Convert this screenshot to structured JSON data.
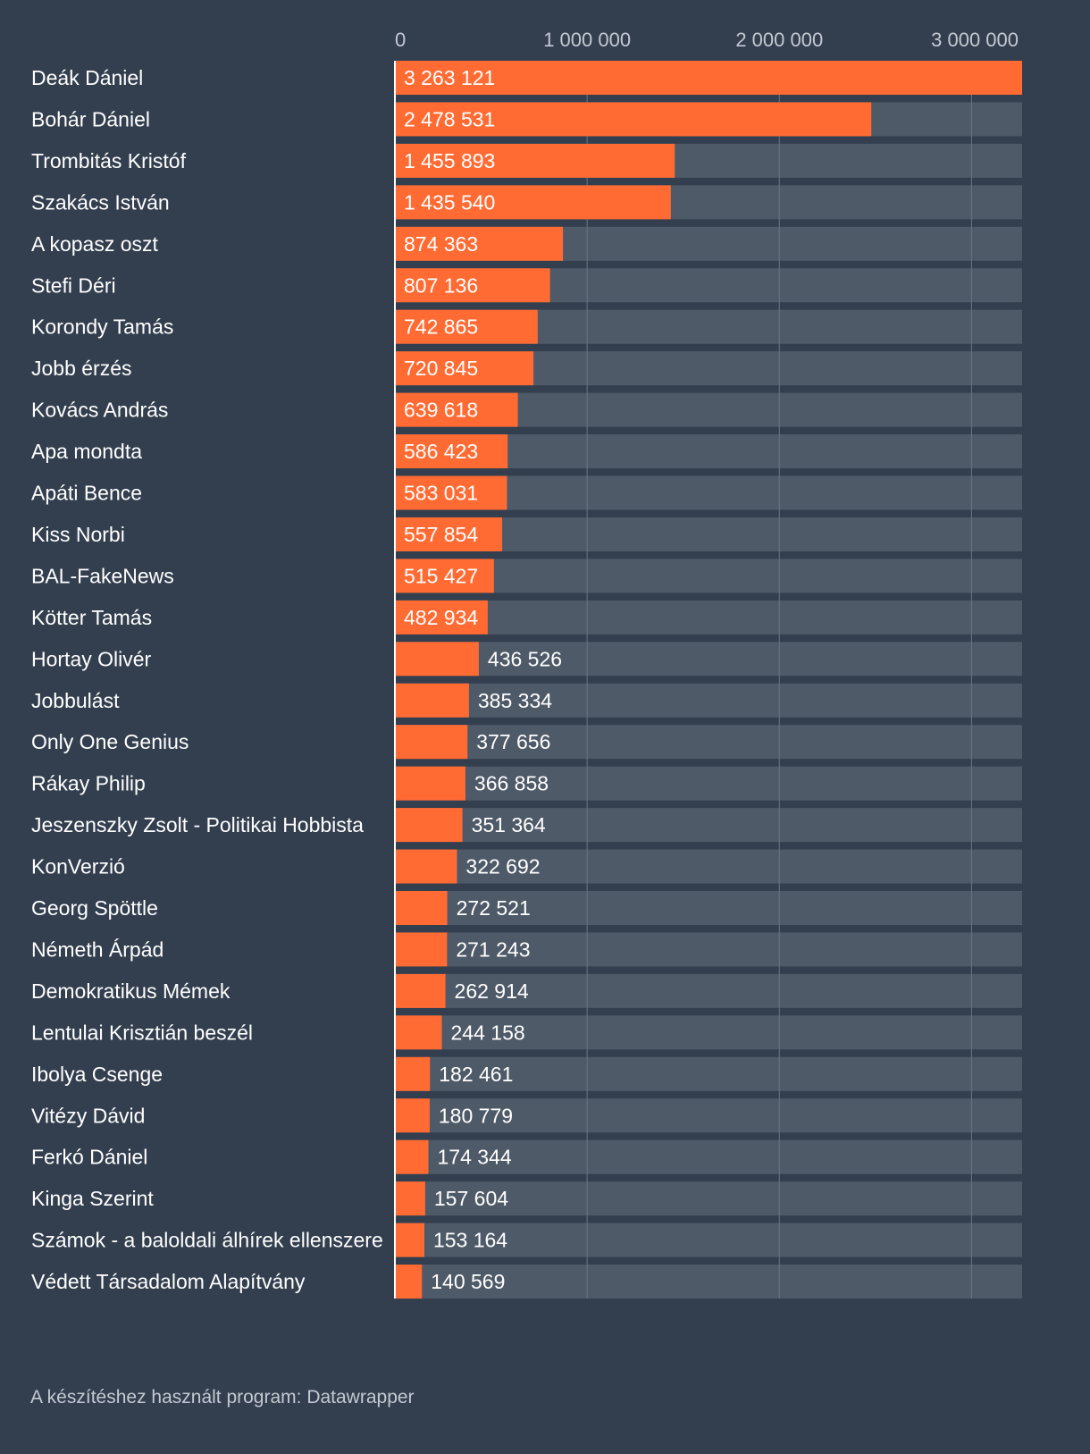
{
  "colors": {
    "background": "#333f4f",
    "bar": "#ff6b33",
    "track": "#4f5a68",
    "grid": "#6b7684",
    "tick_text": "#c4c9d1",
    "label_text": "#ffffff",
    "footer_text": "#c4c9d1"
  },
  "chart_data": {
    "type": "bar",
    "orientation": "horizontal",
    "title": "",
    "xlabel": "",
    "ylabel": "",
    "xlim": [
      0,
      3263121
    ],
    "x_ticks": [
      0,
      1000000,
      2000000,
      3000000
    ],
    "x_tick_labels": [
      "0",
      "1 000 000",
      "2 000 000",
      "3 000 000"
    ],
    "grid": true,
    "categories": [
      "Deák Dániel",
      "Bohár Dániel",
      "Trombitás Kristóf",
      "Szakács István",
      "A kopasz oszt",
      "Stefi Déri",
      "Korondy Tamás",
      "Jobb érzés",
      "Kovács András",
      "Apa mondta",
      "Apáti Bence",
      "Kiss Norbi",
      "BAL-FakeNews",
      "Kötter Tamás",
      "Hortay Olivér",
      "Jobbulást",
      "Only One Genius",
      "Rákay Philip",
      "Jeszenszky Zsolt - Politikai Hobbista",
      "KonVerzió",
      "Georg Spöttle",
      "Németh Árpád",
      "Demokratikus Mémek",
      "Lentulai Krisztián beszél",
      "Ibolya Csenge",
      "Vitézy Dávid",
      "Ferkó Dániel",
      "Kinga Szerint",
      "Számok - a baloldali álhírek ellenszere",
      "Védett Társadalom Alapítvány"
    ],
    "values": [
      3263121,
      2478531,
      1455893,
      1435540,
      874363,
      807136,
      742865,
      720845,
      639618,
      586423,
      583031,
      557854,
      515427,
      482934,
      436526,
      385334,
      377656,
      366858,
      351364,
      322692,
      272521,
      271243,
      262914,
      244158,
      182461,
      180779,
      174344,
      157604,
      153164,
      140569
    ],
    "value_labels": [
      "3 263 121",
      "2 478 531",
      "1 455 893",
      "1 435 540",
      "874 363",
      "807 136",
      "742 865",
      "720 845",
      "639 618",
      "586 423",
      "583 031",
      "557 854",
      "515 427",
      "482 934",
      "436 526",
      "385 334",
      "377 656",
      "366 858",
      "351 364",
      "322 692",
      "272 521",
      "271 243",
      "262 914",
      "244 158",
      "182 461",
      "180 779",
      "174 344",
      "157 604",
      "153 164",
      "140 569"
    ]
  },
  "footer": {
    "credit": "A készítéshez használt program: Datawrapper"
  }
}
